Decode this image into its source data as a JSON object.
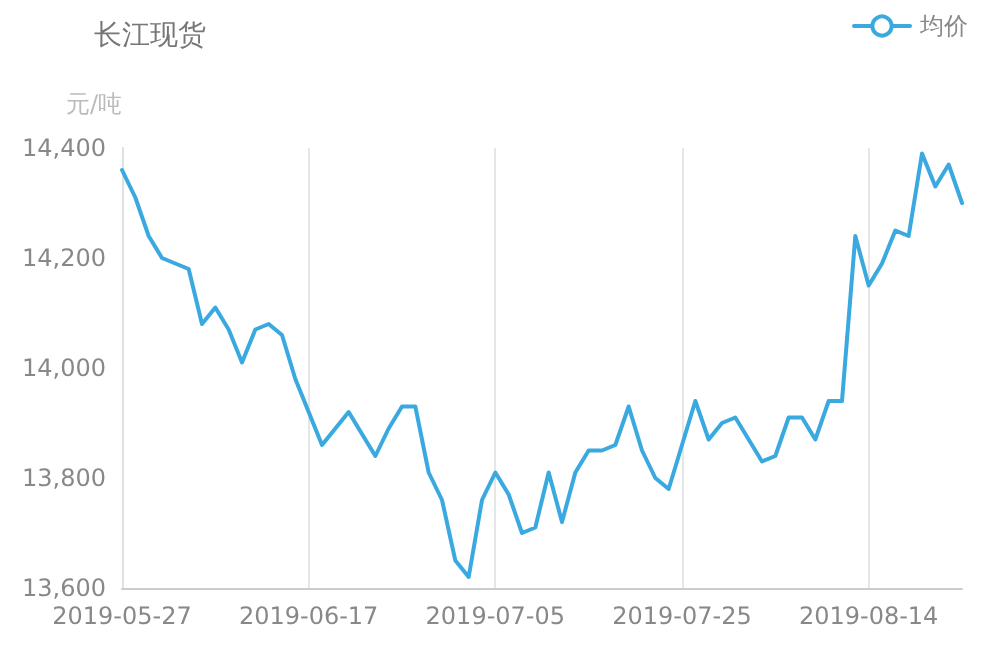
{
  "chart_data": {
    "type": "line",
    "title": "长江现货",
    "ylabel": "元/吨",
    "categories": [
      "2019-05-27",
      null,
      null,
      null,
      null,
      null,
      null,
      null,
      null,
      null,
      null,
      null,
      null,
      null,
      "2019-06-17",
      null,
      null,
      null,
      null,
      null,
      null,
      null,
      null,
      null,
      null,
      null,
      null,
      null,
      "2019-07-05",
      null,
      null,
      null,
      null,
      null,
      null,
      null,
      null,
      null,
      null,
      null,
      null,
      null,
      "2019-07-25",
      null,
      null,
      null,
      null,
      null,
      null,
      null,
      null,
      null,
      null,
      null,
      null,
      null,
      "2019-08-14",
      null,
      null,
      null,
      null,
      null,
      null,
      null
    ],
    "series": [
      {
        "name": "均价",
        "color": "#3aa9e0",
        "values": [
          14360,
          14310,
          14240,
          14200,
          14190,
          14180,
          14080,
          14110,
          14070,
          14010,
          14070,
          14080,
          14060,
          13980,
          13920,
          13860,
          13890,
          13920,
          13880,
          13840,
          13890,
          13930,
          13930,
          13810,
          13760,
          13650,
          13620,
          13760,
          13810,
          13770,
          13700,
          13710,
          13810,
          13720,
          13810,
          13850,
          13850,
          13860,
          13930,
          13850,
          13800,
          13780,
          13860,
          13940,
          13870,
          13900,
          13910,
          13870,
          13830,
          13840,
          13910,
          13910,
          13870,
          13940,
          13940,
          14240,
          14150,
          14190,
          14250,
          14240,
          14390,
          14330,
          14370,
          14300
        ]
      }
    ],
    "ylim": [
      13600,
      14400
    ],
    "yticks": [
      {
        "value": 13600,
        "label": "13,600"
      },
      {
        "value": 13800,
        "label": "13,800"
      },
      {
        "value": 14000,
        "label": "14,000"
      },
      {
        "value": 14200,
        "label": "14,200"
      },
      {
        "value": 14400,
        "label": "14,400"
      }
    ],
    "grid": "x",
    "legend": "top right",
    "marker": "none",
    "line_style": "solid"
  }
}
